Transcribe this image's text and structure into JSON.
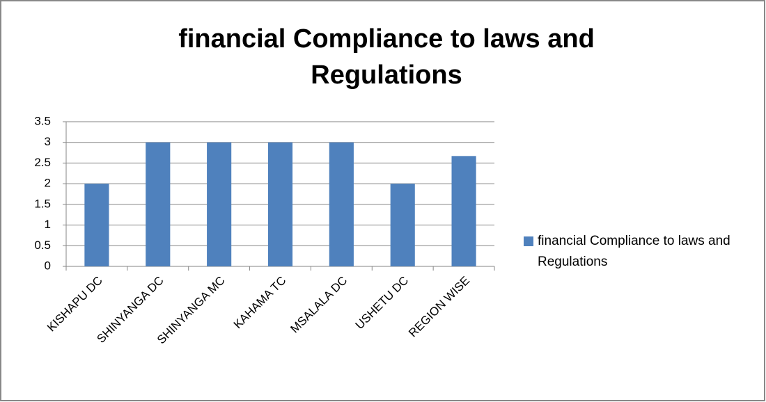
{
  "chart_data": {
    "type": "bar",
    "title": "financial Compliance to laws and Regulations",
    "categories": [
      "KISHAPU DC",
      "SHINYANGA DC",
      "SHINYANGA MC",
      "KAHAMA TC",
      "MSALALA DC",
      "USHETU DC",
      "REGION WISE"
    ],
    "series": [
      {
        "name": "financial Compliance to laws and Regulations",
        "color": "#4f81bd",
        "values": [
          2,
          3,
          3,
          3,
          3,
          2,
          2.67
        ]
      }
    ],
    "ylim": [
      0,
      3.5
    ],
    "yticks": [
      0,
      0.5,
      1,
      1.5,
      2,
      2.5,
      3,
      3.5
    ],
    "grid": true,
    "legend": "right"
  }
}
